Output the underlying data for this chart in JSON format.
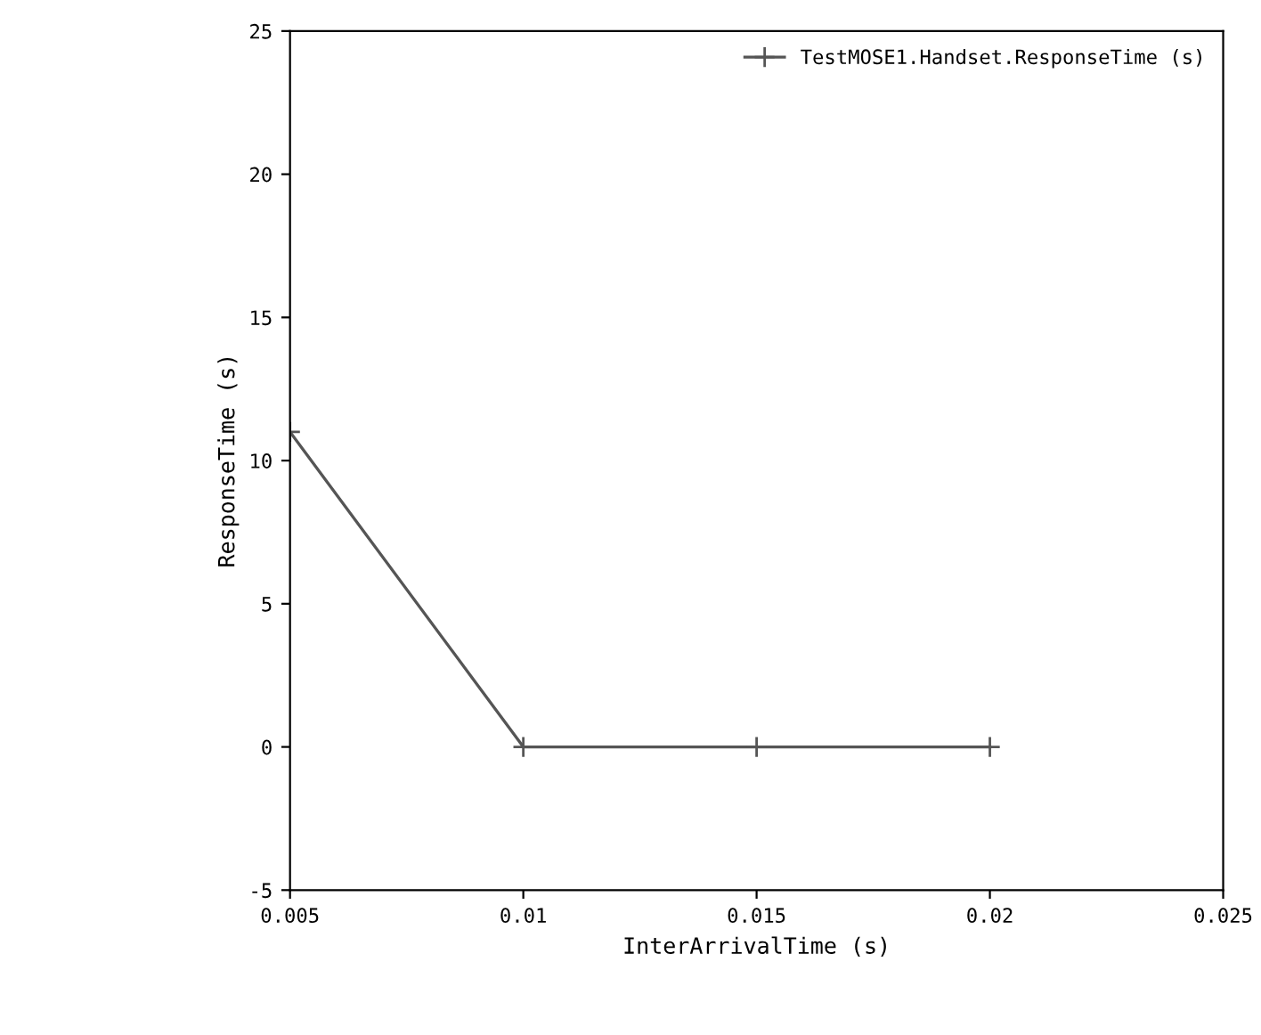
{
  "chart_data": {
    "type": "line",
    "xlabel": "InterArrivalTime (s)",
    "ylabel": "ResponseTime (s)",
    "x": [
      0.005,
      0.01,
      0.015,
      0.02
    ],
    "series": [
      {
        "name": "TestMOSE1.Handset.ResponseTime (s)",
        "color": "#555555",
        "values": [
          11,
          0,
          0,
          0
        ]
      }
    ],
    "xlim": [
      0.005,
      0.025
    ],
    "xticks": [
      0.005,
      0.01,
      0.015,
      0.02,
      0.025
    ],
    "ylim": [
      -5,
      25
    ],
    "yticks": [
      -5,
      0,
      5,
      10,
      15,
      20,
      25
    ],
    "marker": "cross",
    "line_style": "solid",
    "legend": "top right",
    "grid": false
  }
}
